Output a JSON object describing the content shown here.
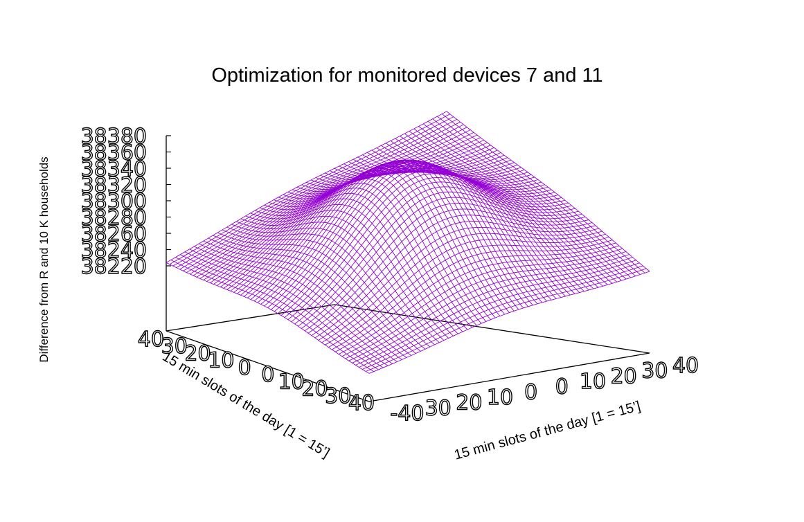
{
  "chart_data": {
    "type": "surface",
    "title": "Optimization for monitored devices 7 and 11",
    "xlabel": "15 min slots of the day [1 = 15’]",
    "ylabel": "15 min slots of the day [1 = 15’]",
    "zlabel": "Difference from R and 10 K households",
    "xlim": [
      -40,
      40
    ],
    "ylim": [
      -40,
      40
    ],
    "zlim": [
      38220,
      38380
    ],
    "x_ticks": [
      "-40",
      "30",
      "20",
      "10",
      "0",
      "0",
      "10",
      "20",
      "30",
      "40"
    ],
    "y_ticks": [
      "40",
      "30",
      "20",
      "10",
      "0",
      "0",
      "10",
      "20",
      "30",
      "40"
    ],
    "z_ticks": [
      "38220",
      "38240",
      "38260",
      "38280",
      "38300",
      "38320",
      "38340",
      "38360",
      "38380"
    ],
    "surface": {
      "shape": "gaussian-like hump",
      "peak_z": 38380,
      "peak_at": [
        0,
        0
      ],
      "corner_z": {
        "x-40_y-40": 38210,
        "x-40_y40": 38255,
        "x40_y40": 38370,
        "x40_y-40": 38270
      }
    },
    "grid": false,
    "color": "#9400d3"
  }
}
